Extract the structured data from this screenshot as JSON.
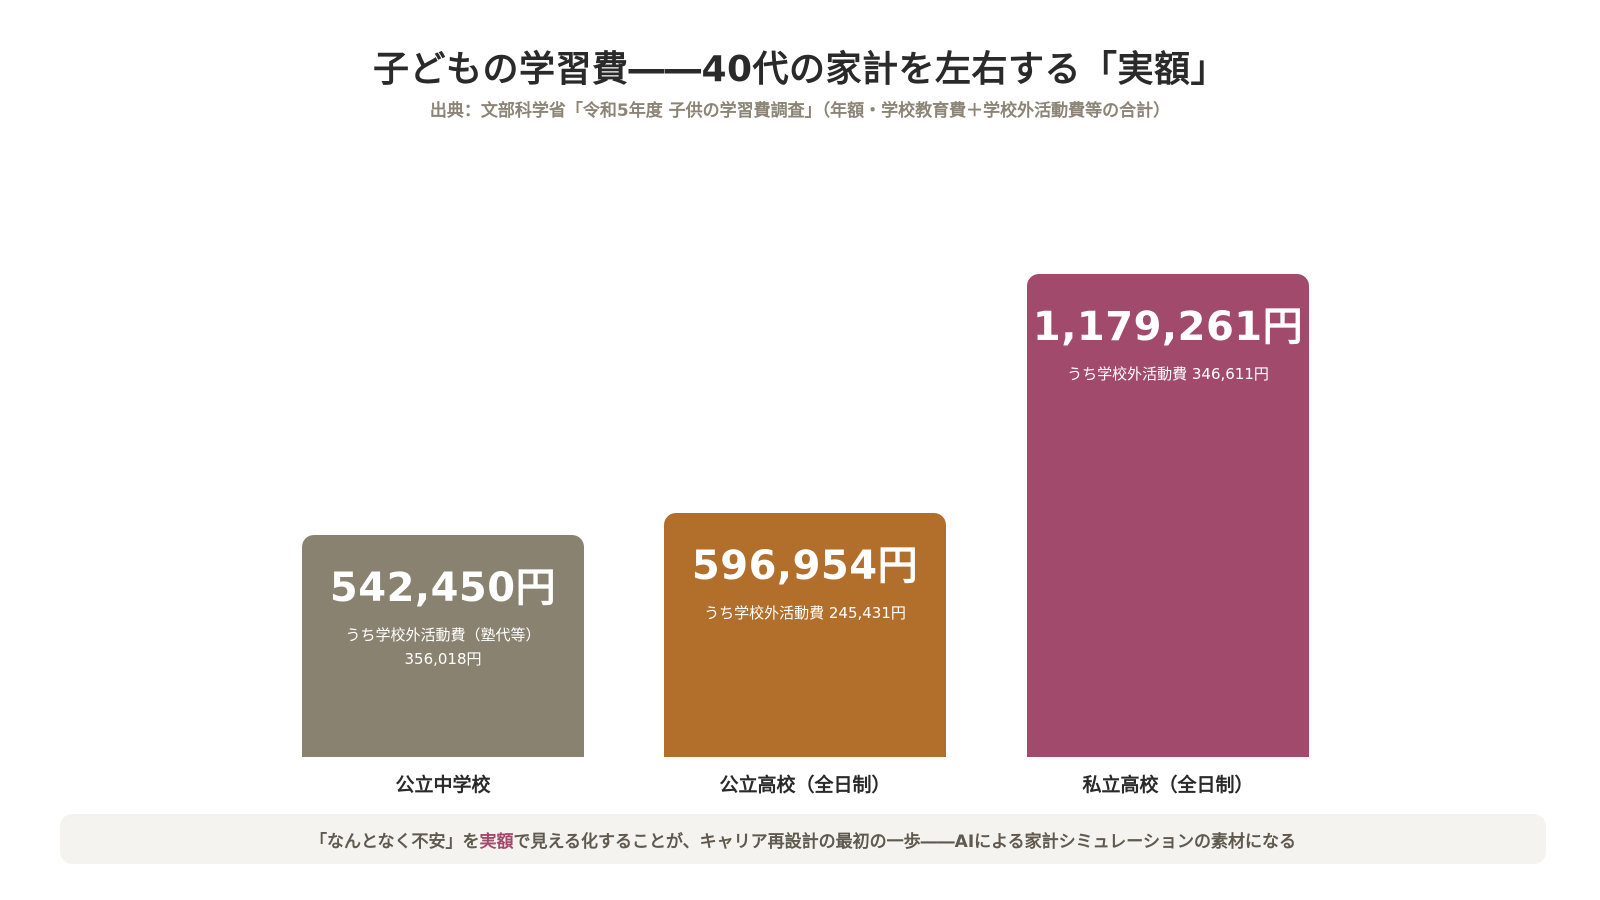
{
  "title": "子どもの学習費――40代の家計を左右する「実額」",
  "subtitle": "出典：文部科学省「令和5年度 子供の学習費調査」（年額・学校教育費＋学校外活動費等の合計）",
  "footer": {
    "before": "「なんとなく不安」を",
    "accent": "実額",
    "after": "で見える化することが、キャリア再設計の最初の一歩――AIによる家計シミュレーションの素材になる"
  },
  "colors": {
    "public_middle": "#8a8270",
    "public_high": "#b26f2b",
    "private_high": "#a24a6c",
    "accent": "#a24a6c",
    "footer_bg": "#f4f3ef"
  },
  "chart_data": {
    "type": "bar",
    "categories": [
      "公立中学校",
      "公立高校（全日制）",
      "私立高校（全日制）"
    ],
    "values": [
      542450,
      596954,
      1179261
    ],
    "value_labels": [
      "542,450円",
      "596,954円",
      "1,179,261円"
    ],
    "notes": [
      "うち学校外活動費（塾代等）356,018円",
      "うち学校外活動費 245,431円",
      "うち学校外活動費 346,611円"
    ],
    "out_of_school_values": [
      356018,
      245431,
      346611
    ],
    "unit": "円",
    "grid": false,
    "axes_visible": false
  }
}
